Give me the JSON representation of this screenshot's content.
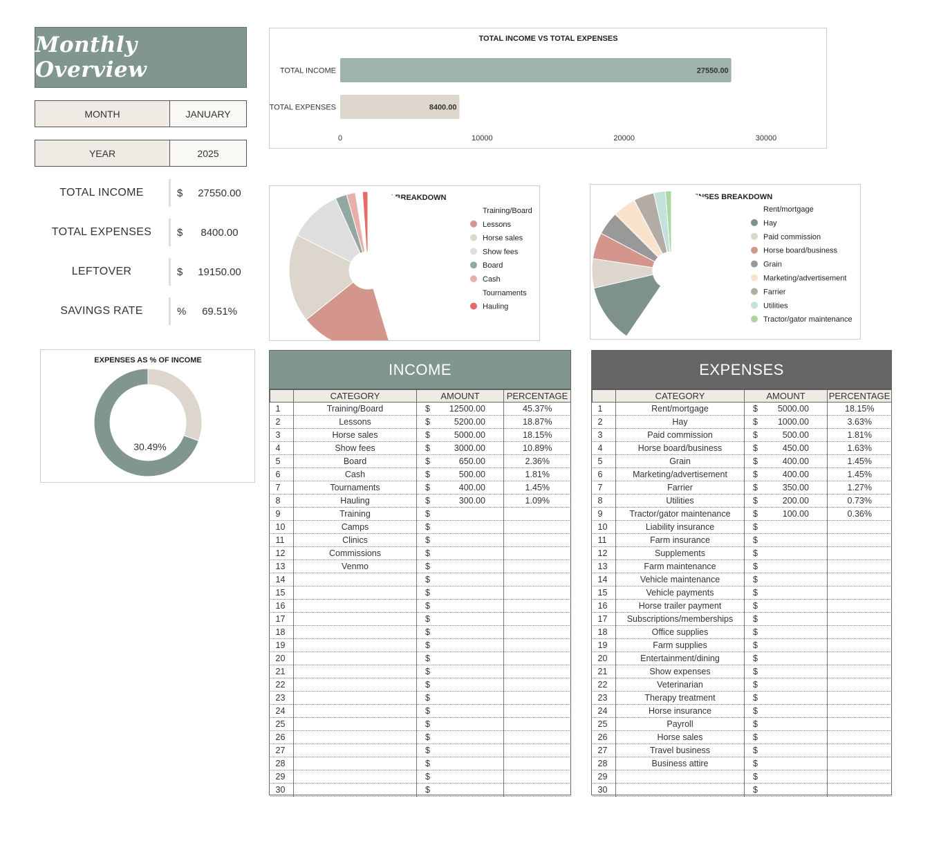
{
  "title": "Monthly Overview",
  "month": {
    "label": "MONTH",
    "value": "JANUARY"
  },
  "year": {
    "label": "YEAR",
    "value": "2025"
  },
  "summary": [
    {
      "label": "TOTAL INCOME",
      "symbol": "$",
      "value": "27550.00"
    },
    {
      "label": "TOTAL EXPENSES",
      "symbol": "$",
      "value": "8400.00"
    },
    {
      "label": "LEFTOVER",
      "symbol": "$",
      "value": "19150.00"
    },
    {
      "label": "SAVINGS RATE",
      "symbol": "%",
      "value": "69.51%"
    }
  ],
  "colors": {
    "accent_income": "#829691",
    "accent_expenses": "#666666",
    "bar_income": "#9fb3ae",
    "bar_expenses": "#ddd6cd",
    "panel_bg": "#efebe4"
  },
  "chart_data": [
    {
      "type": "bar",
      "orientation": "horizontal",
      "title": "TOTAL INCOME VS TOTAL EXPENSES",
      "categories": [
        "TOTAL INCOME",
        "TOTAL EXPENSES"
      ],
      "values": [
        27550,
        8400
      ],
      "data_labels": [
        "27550.00",
        "8400.00"
      ],
      "colors": [
        "#9fb3ae",
        "#ddd6cd"
      ],
      "xlim": [
        0,
        30000
      ],
      "xticks": [
        "0",
        "10000",
        "20000",
        "30000"
      ]
    },
    {
      "type": "pie",
      "donut": true,
      "title": "INCOME BREAKDOWN",
      "legend_position": "right",
      "labels": [
        "Training/Board",
        "Lessons",
        "Horse sales",
        "Show fees",
        "Board",
        "Cash",
        "Tournaments",
        "Hauling"
      ],
      "values": [
        12500,
        5200,
        5000,
        3000,
        650,
        500,
        400,
        300
      ],
      "colors": [
        "#ffffff",
        "#d4968c",
        "#ddd6cd",
        "#dedede",
        "#93a8a3",
        "#e8b0a8",
        "#ffffff",
        "#e56b64"
      ]
    },
    {
      "type": "pie",
      "donut": true,
      "title": "EXPENSES BREAKDOWN",
      "legend_position": "right",
      "labels": [
        "Rent/mortgage",
        "Hay",
        "Paid commission",
        "Horse board/business",
        "Grain",
        "Marketing/advertisement",
        "Farrier",
        "Utilities",
        "Tractor/gator maintenance"
      ],
      "values": [
        5000,
        1000,
        500,
        450,
        400,
        400,
        350,
        200,
        100
      ],
      "colors": [
        "#ffffff",
        "#7f918c",
        "#ddd6cd",
        "#d4968c",
        "#999999",
        "#fae3cc",
        "#b3aca5",
        "#c4e1dd",
        "#a8d89f"
      ]
    },
    {
      "type": "pie",
      "donut": true,
      "title": "EXPENSES AS % OF INCOME",
      "center_label": "30.49%",
      "values": [
        30.49,
        69.51
      ],
      "colors": [
        "#ddd6cd",
        "#829691"
      ]
    }
  ],
  "income_table": {
    "title": "INCOME",
    "headers": [
      "CATEGORY",
      "AMOUNT",
      "PERCENTAGE"
    ],
    "currency": "$",
    "rows": [
      {
        "num": "1",
        "category": "Training/Board",
        "amount": "12500.00",
        "pct": "45.37%"
      },
      {
        "num": "2",
        "category": "Lessons",
        "amount": "5200.00",
        "pct": "18.87%"
      },
      {
        "num": "3",
        "category": "Horse sales",
        "amount": "5000.00",
        "pct": "18.15%"
      },
      {
        "num": "4",
        "category": "Show fees",
        "amount": "3000.00",
        "pct": "10.89%"
      },
      {
        "num": "5",
        "category": "Board",
        "amount": "650.00",
        "pct": "2.36%"
      },
      {
        "num": "6",
        "category": "Cash",
        "amount": "500.00",
        "pct": "1.81%"
      },
      {
        "num": "7",
        "category": "Tournaments",
        "amount": "400.00",
        "pct": "1.45%"
      },
      {
        "num": "8",
        "category": "Hauling",
        "amount": "300.00",
        "pct": "1.09%"
      },
      {
        "num": "9",
        "category": "Training",
        "amount": "",
        "pct": ""
      },
      {
        "num": "10",
        "category": "Camps",
        "amount": "",
        "pct": ""
      },
      {
        "num": "11",
        "category": "Clinics",
        "amount": "",
        "pct": ""
      },
      {
        "num": "12",
        "category": "Commissions",
        "amount": "",
        "pct": ""
      },
      {
        "num": "13",
        "category": "Venmo",
        "amount": "",
        "pct": ""
      },
      {
        "num": "14",
        "category": "",
        "amount": "",
        "pct": ""
      },
      {
        "num": "15",
        "category": "",
        "amount": "",
        "pct": ""
      },
      {
        "num": "16",
        "category": "",
        "amount": "",
        "pct": ""
      },
      {
        "num": "17",
        "category": "",
        "amount": "",
        "pct": ""
      },
      {
        "num": "18",
        "category": "",
        "amount": "",
        "pct": ""
      },
      {
        "num": "19",
        "category": "",
        "amount": "",
        "pct": ""
      },
      {
        "num": "20",
        "category": "",
        "amount": "",
        "pct": ""
      },
      {
        "num": "21",
        "category": "",
        "amount": "",
        "pct": ""
      },
      {
        "num": "22",
        "category": "",
        "amount": "",
        "pct": ""
      },
      {
        "num": "23",
        "category": "",
        "amount": "",
        "pct": ""
      },
      {
        "num": "24",
        "category": "",
        "amount": "",
        "pct": ""
      },
      {
        "num": "25",
        "category": "",
        "amount": "",
        "pct": ""
      },
      {
        "num": "26",
        "category": "",
        "amount": "",
        "pct": ""
      },
      {
        "num": "27",
        "category": "",
        "amount": "",
        "pct": ""
      },
      {
        "num": "28",
        "category": "",
        "amount": "",
        "pct": ""
      },
      {
        "num": "29",
        "category": "",
        "amount": "",
        "pct": ""
      },
      {
        "num": "30",
        "category": "",
        "amount": "",
        "pct": ""
      }
    ]
  },
  "expenses_table": {
    "title": "EXPENSES",
    "headers": [
      "CATEGORY",
      "AMOUNT",
      "PERCENTAGE"
    ],
    "currency": "$",
    "rows": [
      {
        "num": "1",
        "category": "Rent/mortgage",
        "amount": "5000.00",
        "pct": "18.15%"
      },
      {
        "num": "2",
        "category": "Hay",
        "amount": "1000.00",
        "pct": "3.63%"
      },
      {
        "num": "3",
        "category": "Paid commission",
        "amount": "500.00",
        "pct": "1.81%"
      },
      {
        "num": "4",
        "category": "Horse board/business",
        "amount": "450.00",
        "pct": "1.63%"
      },
      {
        "num": "5",
        "category": "Grain",
        "amount": "400.00",
        "pct": "1.45%"
      },
      {
        "num": "6",
        "category": "Marketing/advertisement",
        "amount": "400.00",
        "pct": "1.45%"
      },
      {
        "num": "7",
        "category": "Farrier",
        "amount": "350.00",
        "pct": "1.27%"
      },
      {
        "num": "8",
        "category": "Utilities",
        "amount": "200.00",
        "pct": "0.73%"
      },
      {
        "num": "9",
        "category": "Tractor/gator maintenance",
        "amount": "100.00",
        "pct": "0.36%"
      },
      {
        "num": "10",
        "category": "Liability insurance",
        "amount": "",
        "pct": ""
      },
      {
        "num": "11",
        "category": "Farm insurance",
        "amount": "",
        "pct": ""
      },
      {
        "num": "12",
        "category": "Supplements",
        "amount": "",
        "pct": ""
      },
      {
        "num": "13",
        "category": "Farm maintenance",
        "amount": "",
        "pct": ""
      },
      {
        "num": "14",
        "category": "Vehicle maintenance",
        "amount": "",
        "pct": ""
      },
      {
        "num": "15",
        "category": "Vehicle payments",
        "amount": "",
        "pct": ""
      },
      {
        "num": "16",
        "category": "Horse trailer payment",
        "amount": "",
        "pct": ""
      },
      {
        "num": "17",
        "category": "Subscriptions/memberships",
        "amount": "",
        "pct": ""
      },
      {
        "num": "18",
        "category": "Office supplies",
        "amount": "",
        "pct": ""
      },
      {
        "num": "19",
        "category": "Farm supplies",
        "amount": "",
        "pct": ""
      },
      {
        "num": "20",
        "category": "Entertainment/dining",
        "amount": "",
        "pct": ""
      },
      {
        "num": "21",
        "category": "Show expenses",
        "amount": "",
        "pct": ""
      },
      {
        "num": "22",
        "category": "Veterinarian",
        "amount": "",
        "pct": ""
      },
      {
        "num": "23",
        "category": "Therapy treatment",
        "amount": "",
        "pct": ""
      },
      {
        "num": "24",
        "category": "Horse insurance",
        "amount": "",
        "pct": ""
      },
      {
        "num": "25",
        "category": "Payroll",
        "amount": "",
        "pct": ""
      },
      {
        "num": "26",
        "category": "Horse sales",
        "amount": "",
        "pct": ""
      },
      {
        "num": "27",
        "category": "Travel business",
        "amount": "",
        "pct": ""
      },
      {
        "num": "28",
        "category": "Business attire",
        "amount": "",
        "pct": ""
      },
      {
        "num": "29",
        "category": "",
        "amount": "",
        "pct": ""
      },
      {
        "num": "30",
        "category": "",
        "amount": "",
        "pct": ""
      }
    ]
  }
}
